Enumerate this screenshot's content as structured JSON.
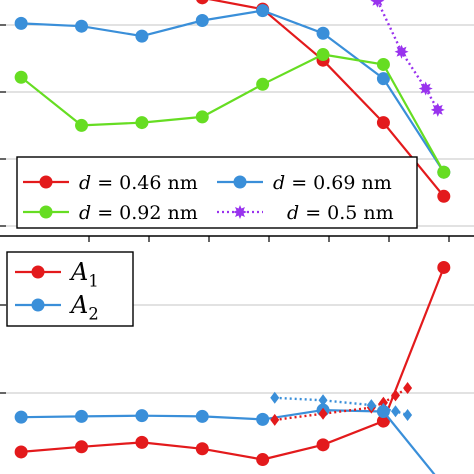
{
  "chart_data": [
    {
      "type": "line",
      "panel": "top",
      "title": "",
      "xlabel": "",
      "ylabel": "",
      "xlim": [
        -0.35,
        7.5
      ],
      "ylim": [
        0.0,
        1.7
      ],
      "grid": true,
      "legend_position": "bottom-center",
      "series": [
        {
          "name": "d = 0.46 nm",
          "name_parts": [
            "d",
            " = 0.46",
            " nm"
          ],
          "color": "#e31a1c",
          "marker": "circle",
          "style": "solid",
          "x": [
            3.0,
            4.0,
            5.0,
            6.0,
            7.0
          ],
          "y": [
            1.68,
            1.6,
            1.24,
            0.8,
            0.28
          ]
        },
        {
          "name": "d = 0.69 nm",
          "name_parts": [
            "d",
            " = 0.69",
            " nm"
          ],
          "color": "#3a8fd9",
          "marker": "circle",
          "style": "solid",
          "x": [
            0.0,
            1.0,
            2.0,
            3.0,
            4.0,
            5.0,
            6.0,
            7.0
          ],
          "y": [
            1.5,
            1.48,
            1.41,
            1.52,
            1.59,
            1.43,
            1.11,
            0.45
          ]
        },
        {
          "name": "d = 0.92 nm",
          "name_parts": [
            "d",
            " = 0.92",
            " nm"
          ],
          "color": "#66dd22",
          "marker": "circle",
          "style": "solid",
          "x": [
            0.0,
            1.0,
            2.0,
            3.0,
            4.0,
            5.0,
            6.0,
            7.0
          ],
          "y": [
            1.12,
            0.78,
            0.8,
            0.84,
            1.07,
            1.28,
            1.21,
            0.45
          ]
        },
        {
          "name": "d = 0.5 nm",
          "name_parts": [
            "d",
            " = 0.5",
            " nm"
          ],
          "color": "#9933ee",
          "marker": "star",
          "style": "dotted",
          "x": [
            5.9,
            6.3,
            6.7,
            6.9
          ],
          "y": [
            1.66,
            1.3,
            1.04,
            0.89
          ]
        }
      ]
    },
    {
      "type": "line",
      "panel": "bottom",
      "title": "",
      "xlabel": "",
      "ylabel": "",
      "xlim": [
        -0.35,
        7.5
      ],
      "ylim": [
        0.0,
        1.0
      ],
      "grid": true,
      "legend_position": "top-left",
      "series": [
        {
          "name": "A1",
          "name_parts": [
            "A",
            "1"
          ],
          "color": "#e31a1c",
          "marker": "circle",
          "style": "solid",
          "x": [
            0.0,
            1.0,
            2.0,
            3.0,
            4.0,
            5.0,
            6.0,
            7.0
          ],
          "y": [
            0.139,
            0.16,
            0.178,
            0.152,
            0.108,
            0.168,
            0.265,
            0.892
          ]
        },
        {
          "name": "A2",
          "name_parts": [
            "A",
            "2"
          ],
          "color": "#3a8fd9",
          "marker": "circle",
          "style": "solid",
          "x": [
            0.0,
            1.0,
            2.0,
            3.0,
            4.0,
            5.0,
            6.0,
            7.0
          ],
          "y": [
            0.281,
            0.284,
            0.287,
            0.284,
            0.272,
            0.31,
            0.304,
            0.0
          ]
        },
        {
          "name": "",
          "color": "#e31a1c",
          "marker": "diamond",
          "style": "dotted",
          "x": [
            4.2,
            5.0,
            5.8,
            6.0,
            6.2,
            6.4
          ],
          "y": [
            0.27,
            0.295,
            0.32,
            0.34,
            0.37,
            0.4
          ]
        },
        {
          "name": "",
          "color": "#3a8fd9",
          "marker": "diamond",
          "style": "dotted",
          "x": [
            4.2,
            5.0,
            5.8,
            6.0,
            6.2,
            6.4
          ],
          "y": [
            0.36,
            0.35,
            0.33,
            0.315,
            0.305,
            0.29
          ]
        }
      ]
    }
  ]
}
